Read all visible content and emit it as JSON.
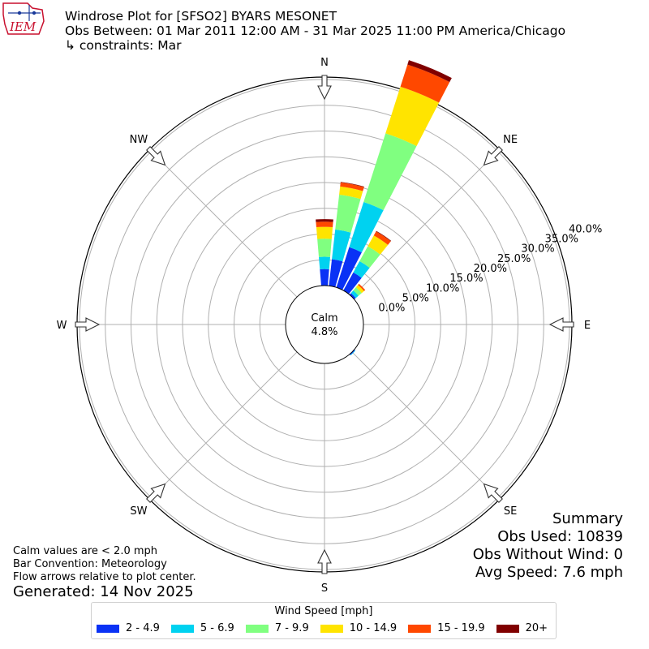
{
  "header": {
    "logo_text": "IEM",
    "title": "Windrose Plot for [SFSO2] BYARS MESONET",
    "obs_range": "Obs Between: 01 Mar 2011 12:00 AM - 31 Mar 2025 11:00 PM America/Chicago",
    "constraints": "↳ constraints: Mar"
  },
  "notes": {
    "calm_def": "Calm values are < 2.0 mph",
    "bar_convention": "Bar Convention: Meteorology",
    "flow_arrows": "Flow arrows relative to plot center.",
    "generated": "Generated: 14 Nov 2025"
  },
  "summary": {
    "heading": "Summary",
    "obs_used": "Obs Used: 10839",
    "obs_without_wind": "Obs Without Wind: 0",
    "avg_speed": "Avg Speed: 7.6 mph"
  },
  "legend": {
    "title": "Wind Speed [mph]",
    "items": [
      {
        "label": "2 - 4.9",
        "color": "#0a32f5"
      },
      {
        "label": "5 - 6.9",
        "color": "#00d2f0"
      },
      {
        "label": "7 - 9.9",
        "color": "#80ff80"
      },
      {
        "label": "10 - 14.9",
        "color": "#ffe400"
      },
      {
        "label": "15 - 19.9",
        "color": "#ff4800"
      },
      {
        "label": "20+",
        "color": "#800000"
      }
    ]
  },
  "chart_data": {
    "type": "windrose",
    "calm_label": "Calm",
    "calm_value": "4.8%",
    "radial_ticks": [
      "0.0%",
      "5.0%",
      "10.0%",
      "15.0%",
      "20.0%",
      "25.0%",
      "30.0%",
      "35.0%",
      "40.0%"
    ],
    "radial_max": 40,
    "directions": [
      "N",
      "NE",
      "E",
      "SE",
      "S",
      "SW",
      "W",
      "NW"
    ],
    "sectors": [
      {
        "angle": 0,
        "values": [
          3.2,
          2.4,
          3.5,
          2.3,
          1.0,
          0.5
        ]
      },
      {
        "angle": 11.25,
        "values": [
          5.2,
          5.8,
          6.8,
          1.6,
          0.8,
          0.1
        ]
      },
      {
        "angle": 22.5,
        "values": [
          8.2,
          9.2,
          14.0,
          9.5,
          4.5,
          0.9
        ]
      },
      {
        "angle": 33.75,
        "values": [
          4.0,
          2.5,
          3.3,
          2.4,
          0.9,
          0.1
        ]
      },
      {
        "angle": 45,
        "values": [
          0.4,
          0.7,
          0.8,
          0.6,
          0.3,
          0.0
        ]
      },
      {
        "angle": 135,
        "values": [
          0.2,
          0.1,
          0.0,
          0.0,
          0.0,
          0.0
        ]
      }
    ]
  }
}
